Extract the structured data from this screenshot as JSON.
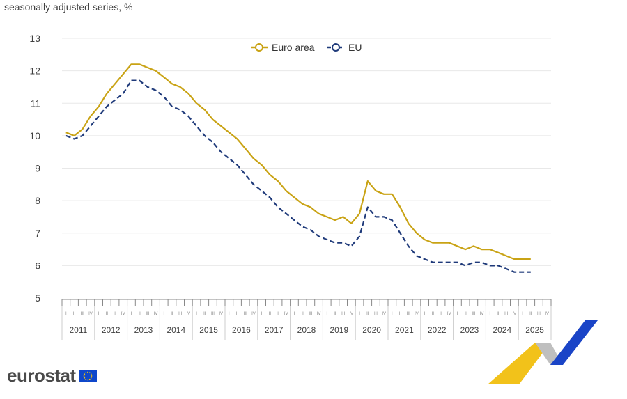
{
  "subtitle": "seasonally adjusted series, %",
  "logo": {
    "text": "eurostat"
  },
  "colors": {
    "euro_area": "#c9a315",
    "eu": "#1f3a7a",
    "grid": "#e8e8e8",
    "axis_text": "#404040",
    "flag_bg": "#0e47cb",
    "flag_star": "#ffcc00",
    "deco_yellow": "#f2c21a",
    "deco_blue": "#1a44c7",
    "deco_grey": "#bfbfbf"
  },
  "chart_data": {
    "type": "line",
    "title": "",
    "xlabel": "",
    "ylabel": "",
    "ylim": [
      5,
      13
    ],
    "yticks": [
      5,
      6,
      7,
      8,
      9,
      10,
      11,
      12,
      13
    ],
    "grid": true,
    "legend": "top-center",
    "x_unit": "quarter",
    "x_start": "2011-Q1",
    "years": [
      "2011",
      "2012",
      "2013",
      "2014",
      "2015",
      "2016",
      "2017",
      "2018",
      "2019",
      "2020",
      "2021",
      "2022",
      "2023",
      "2024",
      "2025"
    ],
    "quarter_labels": [
      "I",
      "II",
      "III",
      "IV"
    ],
    "x": [
      "2011-Q1",
      "2011-Q2",
      "2011-Q3",
      "2011-Q4",
      "2012-Q1",
      "2012-Q2",
      "2012-Q3",
      "2012-Q4",
      "2013-Q1",
      "2013-Q2",
      "2013-Q3",
      "2013-Q4",
      "2014-Q1",
      "2014-Q2",
      "2014-Q3",
      "2014-Q4",
      "2015-Q1",
      "2015-Q2",
      "2015-Q3",
      "2015-Q4",
      "2016-Q1",
      "2016-Q2",
      "2016-Q3",
      "2016-Q4",
      "2017-Q1",
      "2017-Q2",
      "2017-Q3",
      "2017-Q4",
      "2018-Q1",
      "2018-Q2",
      "2018-Q3",
      "2018-Q4",
      "2019-Q1",
      "2019-Q2",
      "2019-Q3",
      "2019-Q4",
      "2020-Q1",
      "2020-Q2",
      "2020-Q3",
      "2020-Q4",
      "2021-Q1",
      "2021-Q2",
      "2021-Q3",
      "2021-Q4",
      "2022-Q1",
      "2022-Q2",
      "2022-Q3",
      "2022-Q4",
      "2023-Q1",
      "2023-Q2",
      "2023-Q3",
      "2023-Q4",
      "2024-Q1",
      "2024-Q2",
      "2024-Q3",
      "2024-Q4",
      "2025-Q1",
      "2025-Q2"
    ],
    "series": [
      {
        "name": "Euro area",
        "marker": "circle",
        "dash": "solid",
        "values": [
          10.1,
          10.0,
          10.2,
          10.6,
          10.9,
          11.3,
          11.6,
          11.9,
          12.2,
          12.2,
          12.1,
          12.0,
          11.8,
          11.6,
          11.5,
          11.3,
          11.0,
          10.8,
          10.5,
          10.3,
          10.1,
          9.9,
          9.6,
          9.3,
          9.1,
          8.8,
          8.6,
          8.3,
          8.1,
          7.9,
          7.8,
          7.6,
          7.5,
          7.4,
          7.5,
          7.3,
          7.6,
          8.6,
          8.3,
          8.2,
          8.2,
          7.8,
          7.3,
          7.0,
          6.8,
          6.7,
          6.7,
          6.7,
          6.6,
          6.5,
          6.6,
          6.5,
          6.5,
          6.4,
          6.3,
          6.2,
          6.2,
          6.2
        ]
      },
      {
        "name": "EU",
        "marker": "circle",
        "dash": "dashed",
        "values": [
          10.0,
          9.9,
          10.0,
          10.3,
          10.6,
          10.9,
          11.1,
          11.3,
          11.7,
          11.7,
          11.5,
          11.4,
          11.2,
          10.9,
          10.8,
          10.6,
          10.3,
          10.0,
          9.8,
          9.5,
          9.3,
          9.1,
          8.8,
          8.5,
          8.3,
          8.1,
          7.8,
          7.6,
          7.4,
          7.2,
          7.1,
          6.9,
          6.8,
          6.7,
          6.7,
          6.6,
          6.9,
          7.8,
          7.5,
          7.5,
          7.4,
          7.0,
          6.6,
          6.3,
          6.2,
          6.1,
          6.1,
          6.1,
          6.1,
          6.0,
          6.1,
          6.1,
          6.0,
          6.0,
          5.9,
          5.8,
          5.8,
          5.8
        ]
      }
    ]
  }
}
